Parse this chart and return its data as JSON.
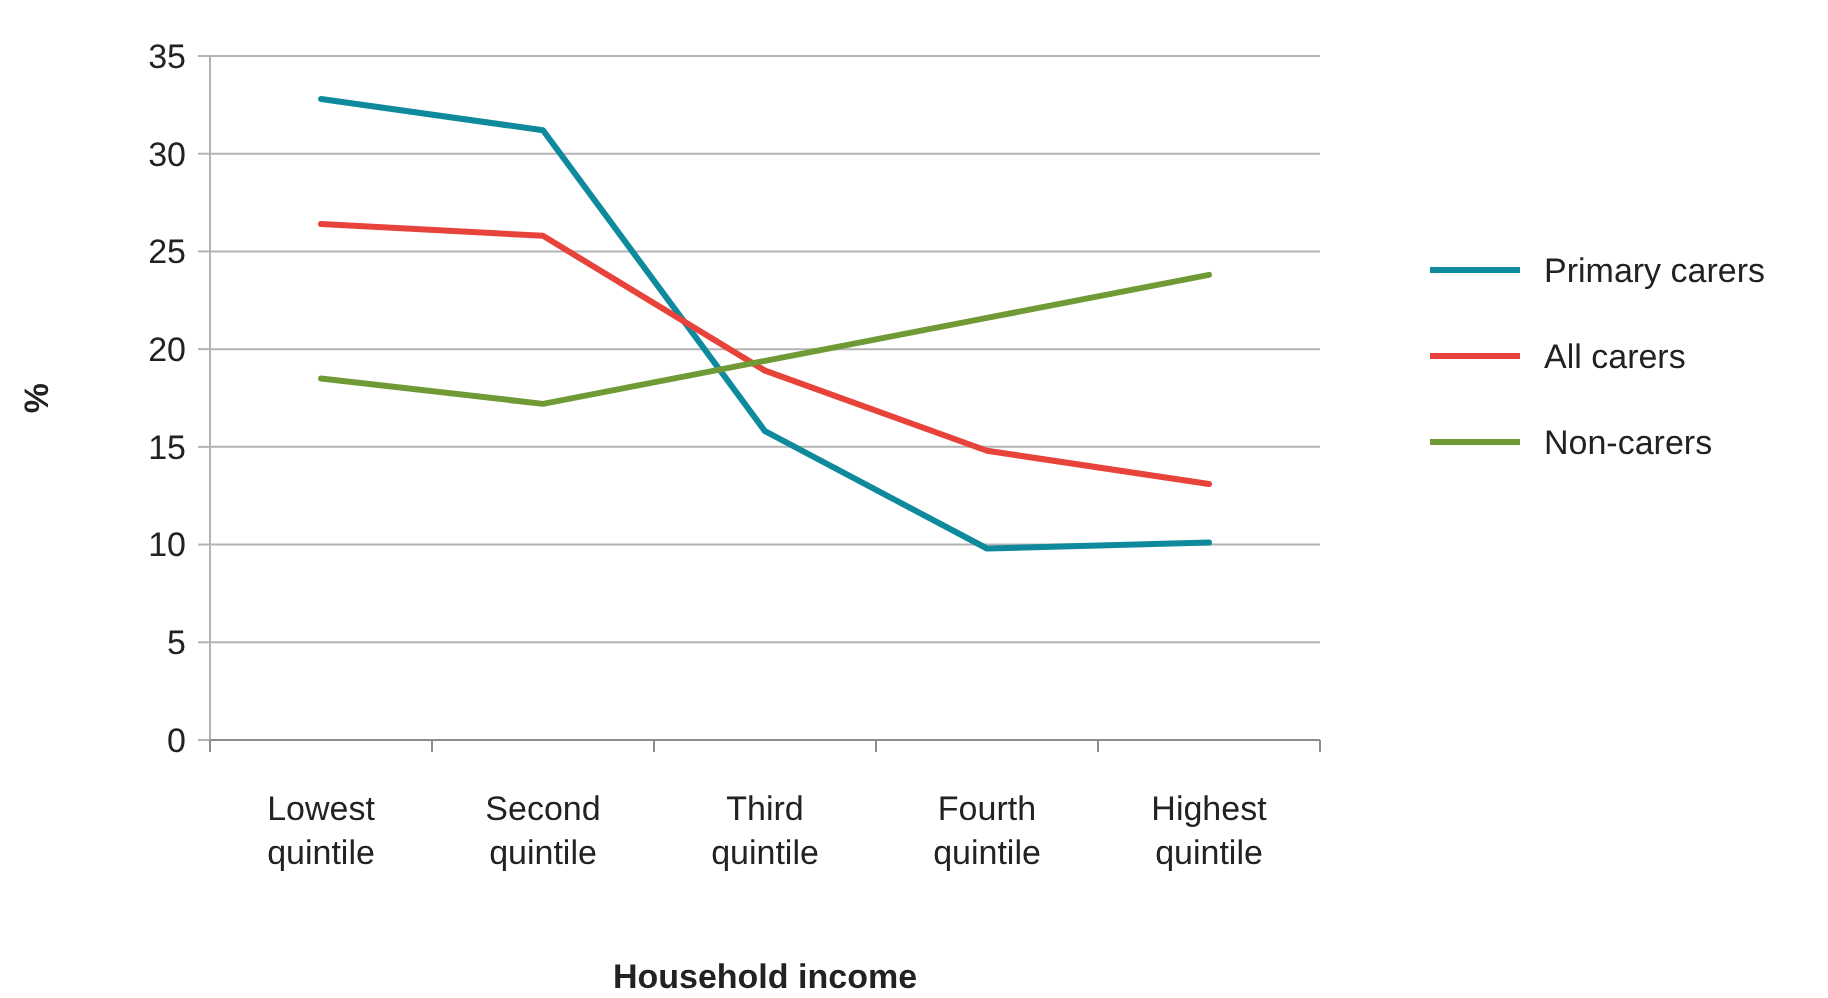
{
  "chart_data": {
    "type": "line",
    "xlabel": "Household income",
    "ylabel": "%",
    "categories": [
      "Lowest quintile",
      "Second quintile",
      "Third quintile",
      "Fourth quintile",
      "Highest quintile"
    ],
    "series": [
      {
        "name": "Primary carers",
        "color": "#0f8a9d",
        "values": [
          32.8,
          31.2,
          15.8,
          9.8,
          10.1
        ]
      },
      {
        "name": "All carers",
        "color": "#e8433a",
        "values": [
          26.4,
          25.8,
          18.9,
          14.8,
          13.1
        ]
      },
      {
        "name": "Non-carers",
        "color": "#6f9a35",
        "values": [
          18.5,
          17.2,
          19.4,
          21.6,
          23.8
        ]
      }
    ],
    "ylim": [
      0,
      35
    ],
    "yticks": [
      0,
      5,
      10,
      15,
      20,
      25,
      30,
      35
    ],
    "grid": "y",
    "legend": "right",
    "marker": "none",
    "line_style": "solid"
  }
}
